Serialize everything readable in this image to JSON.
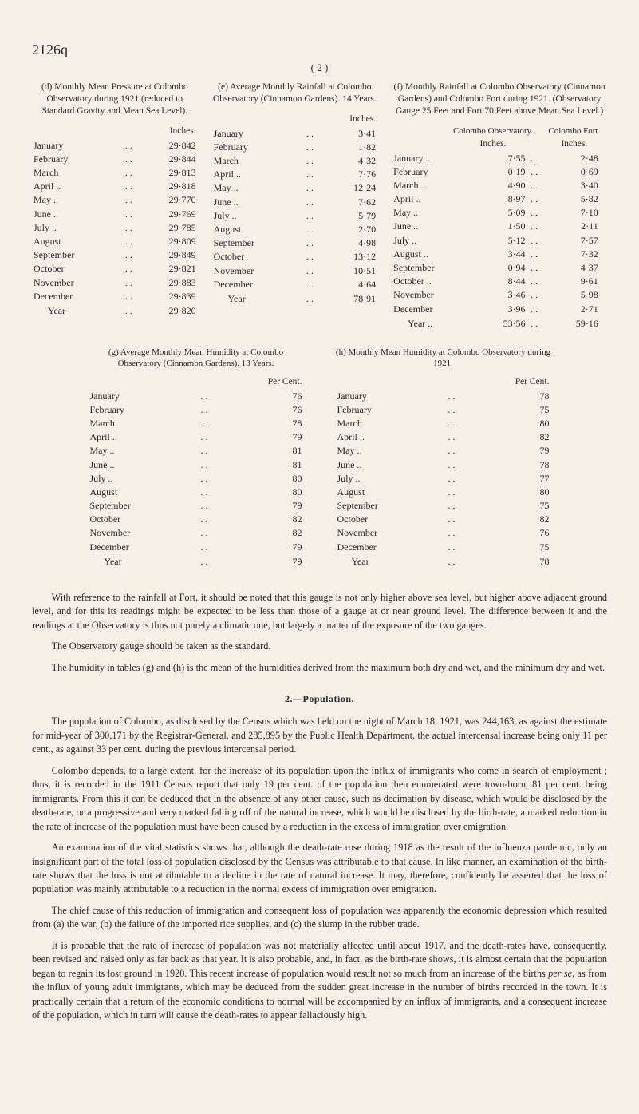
{
  "handwritten": "2126q",
  "page_num": "( 2 )",
  "top": {
    "d": {
      "title": "(d) Monthly Mean Pressure at Colombo Observatory during 1921 (reduced to Standard Gravity and Mean Sea Level).",
      "unit": "Inches.",
      "rows": [
        [
          "January",
          "29·842"
        ],
        [
          "February",
          "29·844"
        ],
        [
          "March",
          "29·813"
        ],
        [
          "April  ..",
          "29·818"
        ],
        [
          "May   ..",
          "29·770"
        ],
        [
          "June   ..",
          "29·769"
        ],
        [
          "July   ..",
          "29·785"
        ],
        [
          "August",
          "29·809"
        ],
        [
          "September",
          "29·849"
        ],
        [
          "October",
          "29·821"
        ],
        [
          "November",
          "29·883"
        ],
        [
          "December",
          "29·839"
        ]
      ],
      "year": [
        "Year",
        "29·820"
      ]
    },
    "e": {
      "title": "(e) Average Monthly Rainfall at Colombo Observatory (Cinnamon Gardens). 14 Years.",
      "unit": "Inches.",
      "rows": [
        [
          "January",
          "3·41"
        ],
        [
          "February",
          "1·82"
        ],
        [
          "March",
          "4·32"
        ],
        [
          "April  ..",
          "7·76"
        ],
        [
          "May   ..",
          "12·24"
        ],
        [
          "June   ..",
          "7·62"
        ],
        [
          "July   ..",
          "5·79"
        ],
        [
          "August",
          "2·70"
        ],
        [
          "September",
          "4·98"
        ],
        [
          "October",
          "13·12"
        ],
        [
          "November",
          "10·51"
        ],
        [
          "December",
          "4·64"
        ]
      ],
      "year": [
        "Year",
        "78·91"
      ]
    },
    "f": {
      "title": "(f) Monthly Rainfall at Colombo Observatory (Cinnamon Gardens) and Colombo Fort during 1921. (Observatory Gauge 25 Feet and Fort 70 Feet above Mean Sea Level.)",
      "head1": "Colombo Observatory.",
      "head2": "Colombo Fort.",
      "unit": "Inches.",
      "rows": [
        [
          "January  ..",
          "7·55",
          "2·48"
        ],
        [
          "February",
          "0·19",
          "0·69"
        ],
        [
          "March     ..",
          "4·90",
          "3·40"
        ],
        [
          "April       ..",
          "8·97",
          "5·82"
        ],
        [
          "May         ..",
          "5·09",
          "7·10"
        ],
        [
          "June         ..",
          "1·50",
          "2·11"
        ],
        [
          "July         ..",
          "5·12",
          "7·57"
        ],
        [
          "August   ..",
          "3·44",
          "7·32"
        ],
        [
          "September",
          "0·94",
          "4·37"
        ],
        [
          "October  ..",
          "8·44",
          "9·61"
        ],
        [
          "November",
          "3·46",
          "5·98"
        ],
        [
          "December",
          "3·96",
          "2·71"
        ]
      ],
      "year": [
        "Year   ..",
        "53·56",
        "59·16"
      ]
    }
  },
  "mid": {
    "g": {
      "title": "(g) Average Monthly Mean Humidity at Colombo Observatory (Cinna­mon Gardens). 13 Years.",
      "unit": "Per Cent.",
      "rows": [
        [
          "January",
          "76"
        ],
        [
          "February",
          "76"
        ],
        [
          "March",
          "78"
        ],
        [
          "April  ..",
          "79"
        ],
        [
          "May   ..",
          "81"
        ],
        [
          "June   ..",
          "81"
        ],
        [
          "July   ..",
          "80"
        ],
        [
          "August",
          "80"
        ],
        [
          "September",
          "79"
        ],
        [
          "October",
          "82"
        ],
        [
          "November",
          "82"
        ],
        [
          "December",
          "79"
        ]
      ],
      "year": [
        "Year",
        "79"
      ]
    },
    "h": {
      "title": "(h) Monthly Mean Humidity at Colombo Observatory during 1921.",
      "unit": "Per Cent.",
      "rows": [
        [
          "January",
          "78"
        ],
        [
          "February",
          "75"
        ],
        [
          "March",
          "80"
        ],
        [
          "April  ..",
          "82"
        ],
        [
          "May   ..",
          "79"
        ],
        [
          "June   ..",
          "78"
        ],
        [
          "July   ..",
          "77"
        ],
        [
          "August",
          "80"
        ],
        [
          "September",
          "75"
        ],
        [
          "October",
          "82"
        ],
        [
          "November",
          "76"
        ],
        [
          "December",
          "75"
        ]
      ],
      "year": [
        "Year",
        "78"
      ]
    }
  },
  "para1": "With reference to the rainfall at Fort, it should be noted that this gauge is not only higher above sea level, but higher above adjacent ground level, and for this its readings might be expected to be less than those of a gauge at or near ground level. The difference between it and the readings at the Observatory is thus not purely a climatic one, but largely a matter of the exposure of the two gauges.",
  "para2": "The Observatory gauge should be taken as the standard.",
  "para3a": "The humidity in tables (g) and (h) is the mean of the humidities derived from the maximum both dry and wet, and the minimum dry and wet.",
  "section2": "2.—Population.",
  "p_pop1": "The population of Colombo, as disclosed by the Census which was held on the night of March 18, 1921, was 244,163, as against the estimate for mid-year of 300,171 by the Registrar-General, and 285,895 by the Public Health Department, the actual intercensal increase being only 11 per cent., as against 33 per cent. during the previous intercensal period.",
  "p_pop2": "Colombo depends, to a large extent, for the increase of its population upon the influx of immigrants who come in search of employment ; thus, it is recorded in the 1911 Census report that only 19 per cent. of the population then enumerated were town-born, 81 per cent. being immigrants. From this it can be deduced that in the absence of any other cause, such as decimation by disease, which would be disclosed by the death-rate, or a progressive and very marked falling off of the natural increase, which would be disclosed by the birth-rate, a marked reduction in the rate of increase of the population must have been caused by a reduction in the excess of immigration over emigration.",
  "p_pop3": "An examination of the vital statistics shows that, although the death-rate rose during 1918 as the result of the influenza pandemic, only an insignificant part of the total loss of population disclosed by the Census was attributable to that cause. In like manner, an examination of the birth-rate shows that the loss is not attributable to a decline in the rate of natural increase. It may, therefore, confidently be asserted that the loss of population was mainly attributable to a reduction in the normal excess of immigration over emigration.",
  "p_pop4": "The chief cause of this reduction of immigration and consequent loss of population was apparently the economic depression which resulted from (a) the war, (b) the failure of the imported rice supplies, and (c) the slump in the rubber trade.",
  "p_pop5_a": "It is probable that the rate of increase of population was not materially affected until about 1917, and the death-rates have, consequently, been revised and raised only as far back as that year. It is also probable, and, in fact, as the birth-rate shows, it is almost certain that the population began to regain its lost ground in 1920. This recent increase of population would result not so much from an increase of the births ",
  "p_pop5_italic": "per se",
  "p_pop5_b": ", as from the influx of young adult immigrants, which may be deduced from the sudden great increase in the number of births recorded in the town. It is practically certain that a return of the economic conditions to normal will be accompanied by an influx of immigrants, and a consequent increase of the population, which in turn will cause the death-rates to appear fallaciously high."
}
